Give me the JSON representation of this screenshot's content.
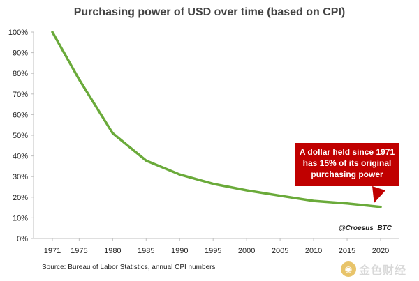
{
  "chart_data": {
    "type": "line",
    "title": "Purchasing power of USD over time (based on CPI)",
    "xlabel": "",
    "ylabel": "",
    "x": [
      1971,
      1975,
      1980,
      1985,
      1990,
      1995,
      2000,
      2005,
      2010,
      2015,
      2020
    ],
    "x_ticks": [
      "1971",
      "1975",
      "1980",
      "1985",
      "1990",
      "1995",
      "2000",
      "2005",
      "2010",
      "2015",
      "2020"
    ],
    "y_ticks": [
      "0%",
      "10%",
      "20%",
      "30%",
      "40%",
      "50%",
      "60%",
      "70%",
      "80%",
      "90%",
      "100%"
    ],
    "ylim": [
      0,
      100
    ],
    "grid": false,
    "series": [
      {
        "values": [
          100,
          77,
          51,
          37.7,
          31,
          26.5,
          23.3,
          20.7,
          18.2,
          17,
          15.3
        ],
        "color": "#6aaa3a"
      }
    ],
    "annotation": {
      "lines": [
        "A dollar held since 1971",
        "has 15% of its original",
        "purchasing power"
      ],
      "color": "#c00000"
    }
  },
  "credit": "@Croesus_BTC",
  "source": "Source: Bureau of Labor Statistics, annual CPI numbers",
  "watermark": {
    "icon": "coin-icon",
    "text": "金色财经"
  }
}
